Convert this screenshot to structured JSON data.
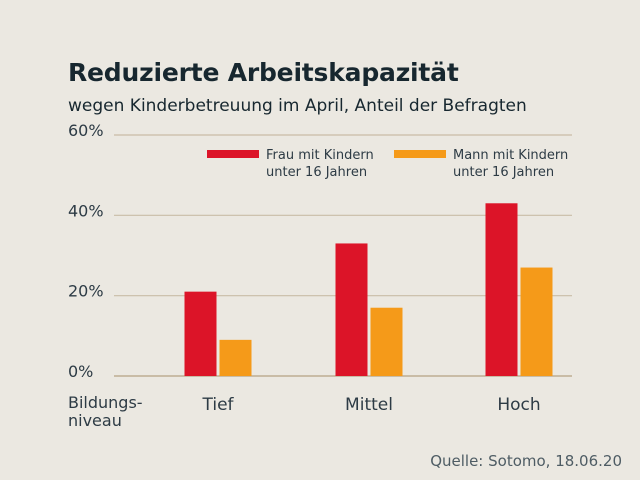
{
  "chart_data": {
    "type": "bar",
    "title": "Reduzierte Arbeitskapazität",
    "subtitle": "wegen Kinderbetreuung im April, Anteil der Befragten",
    "xlabel": "Bildungs-\nniveau",
    "ylabel": "",
    "ylim": [
      0,
      60
    ],
    "yticks": [
      0,
      20,
      40,
      60
    ],
    "ytick_labels": [
      "0%",
      "20%",
      "40%",
      "60%"
    ],
    "grid": true,
    "legend_position": "top-right",
    "categories": [
      "Tief",
      "Mittel",
      "Hoch"
    ],
    "series": [
      {
        "name_line1": "Frau mit Kindern",
        "name_line2": "unter 16 Jahren",
        "color": "#dc1428",
        "values": [
          21,
          33,
          43
        ]
      },
      {
        "name_line1": "Mann mit Kindern",
        "name_line2": "unter 16 Jahren",
        "color": "#f59a19",
        "values": [
          9,
          17,
          27
        ]
      }
    ],
    "source": "Quelle: Sotomo, 18.06.20"
  },
  "colors": {
    "background": "#ebe8e1",
    "grid": "#c9bca6",
    "text": "#2d3b45"
  }
}
